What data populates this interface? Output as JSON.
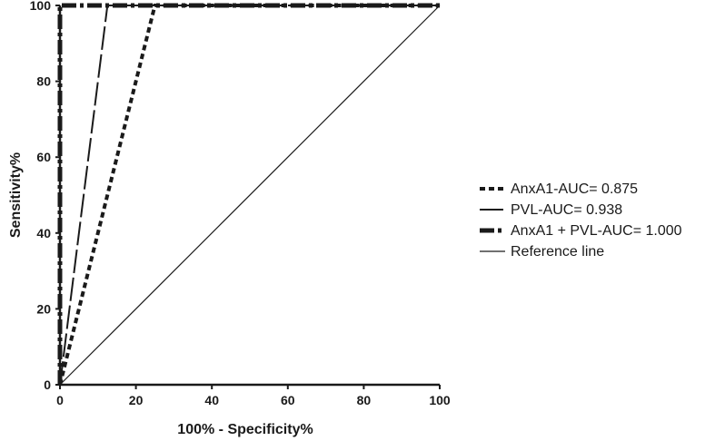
{
  "chart_data": {
    "type": "line",
    "title": "",
    "xlabel": "100% - Specificity%",
    "ylabel": "Sensitivity%",
    "xlim": [
      0,
      100
    ],
    "ylim": [
      0,
      100
    ],
    "x_ticks": [
      "0",
      "20",
      "40",
      "60",
      "80",
      "100"
    ],
    "y_ticks": [
      "0",
      "20",
      "40",
      "60",
      "80",
      "100"
    ],
    "grid": false,
    "legend_position": "right",
    "series": [
      {
        "name": "AnxA1-AUC= 0.875",
        "style": "dotted-thick",
        "color": "#1a1a1a",
        "points": [
          [
            0,
            0
          ],
          [
            25,
            100
          ],
          [
            100,
            100
          ]
        ]
      },
      {
        "name": "PVL-AUC= 0.938",
        "style": "long-dash",
        "color": "#1a1a1a",
        "points": [
          [
            0,
            0
          ],
          [
            12.5,
            100
          ],
          [
            100,
            100
          ]
        ]
      },
      {
        "name": "AnxA1 + PVL-AUC= 1.000",
        "style": "dash-dot-thick",
        "color": "#1a1a1a",
        "points": [
          [
            0,
            0
          ],
          [
            0,
            100
          ],
          [
            100,
            100
          ]
        ]
      },
      {
        "name": "Reference line",
        "style": "solid-thin",
        "color": "#1a1a1a",
        "points": [
          [
            0,
            0
          ],
          [
            100,
            100
          ]
        ]
      }
    ]
  }
}
